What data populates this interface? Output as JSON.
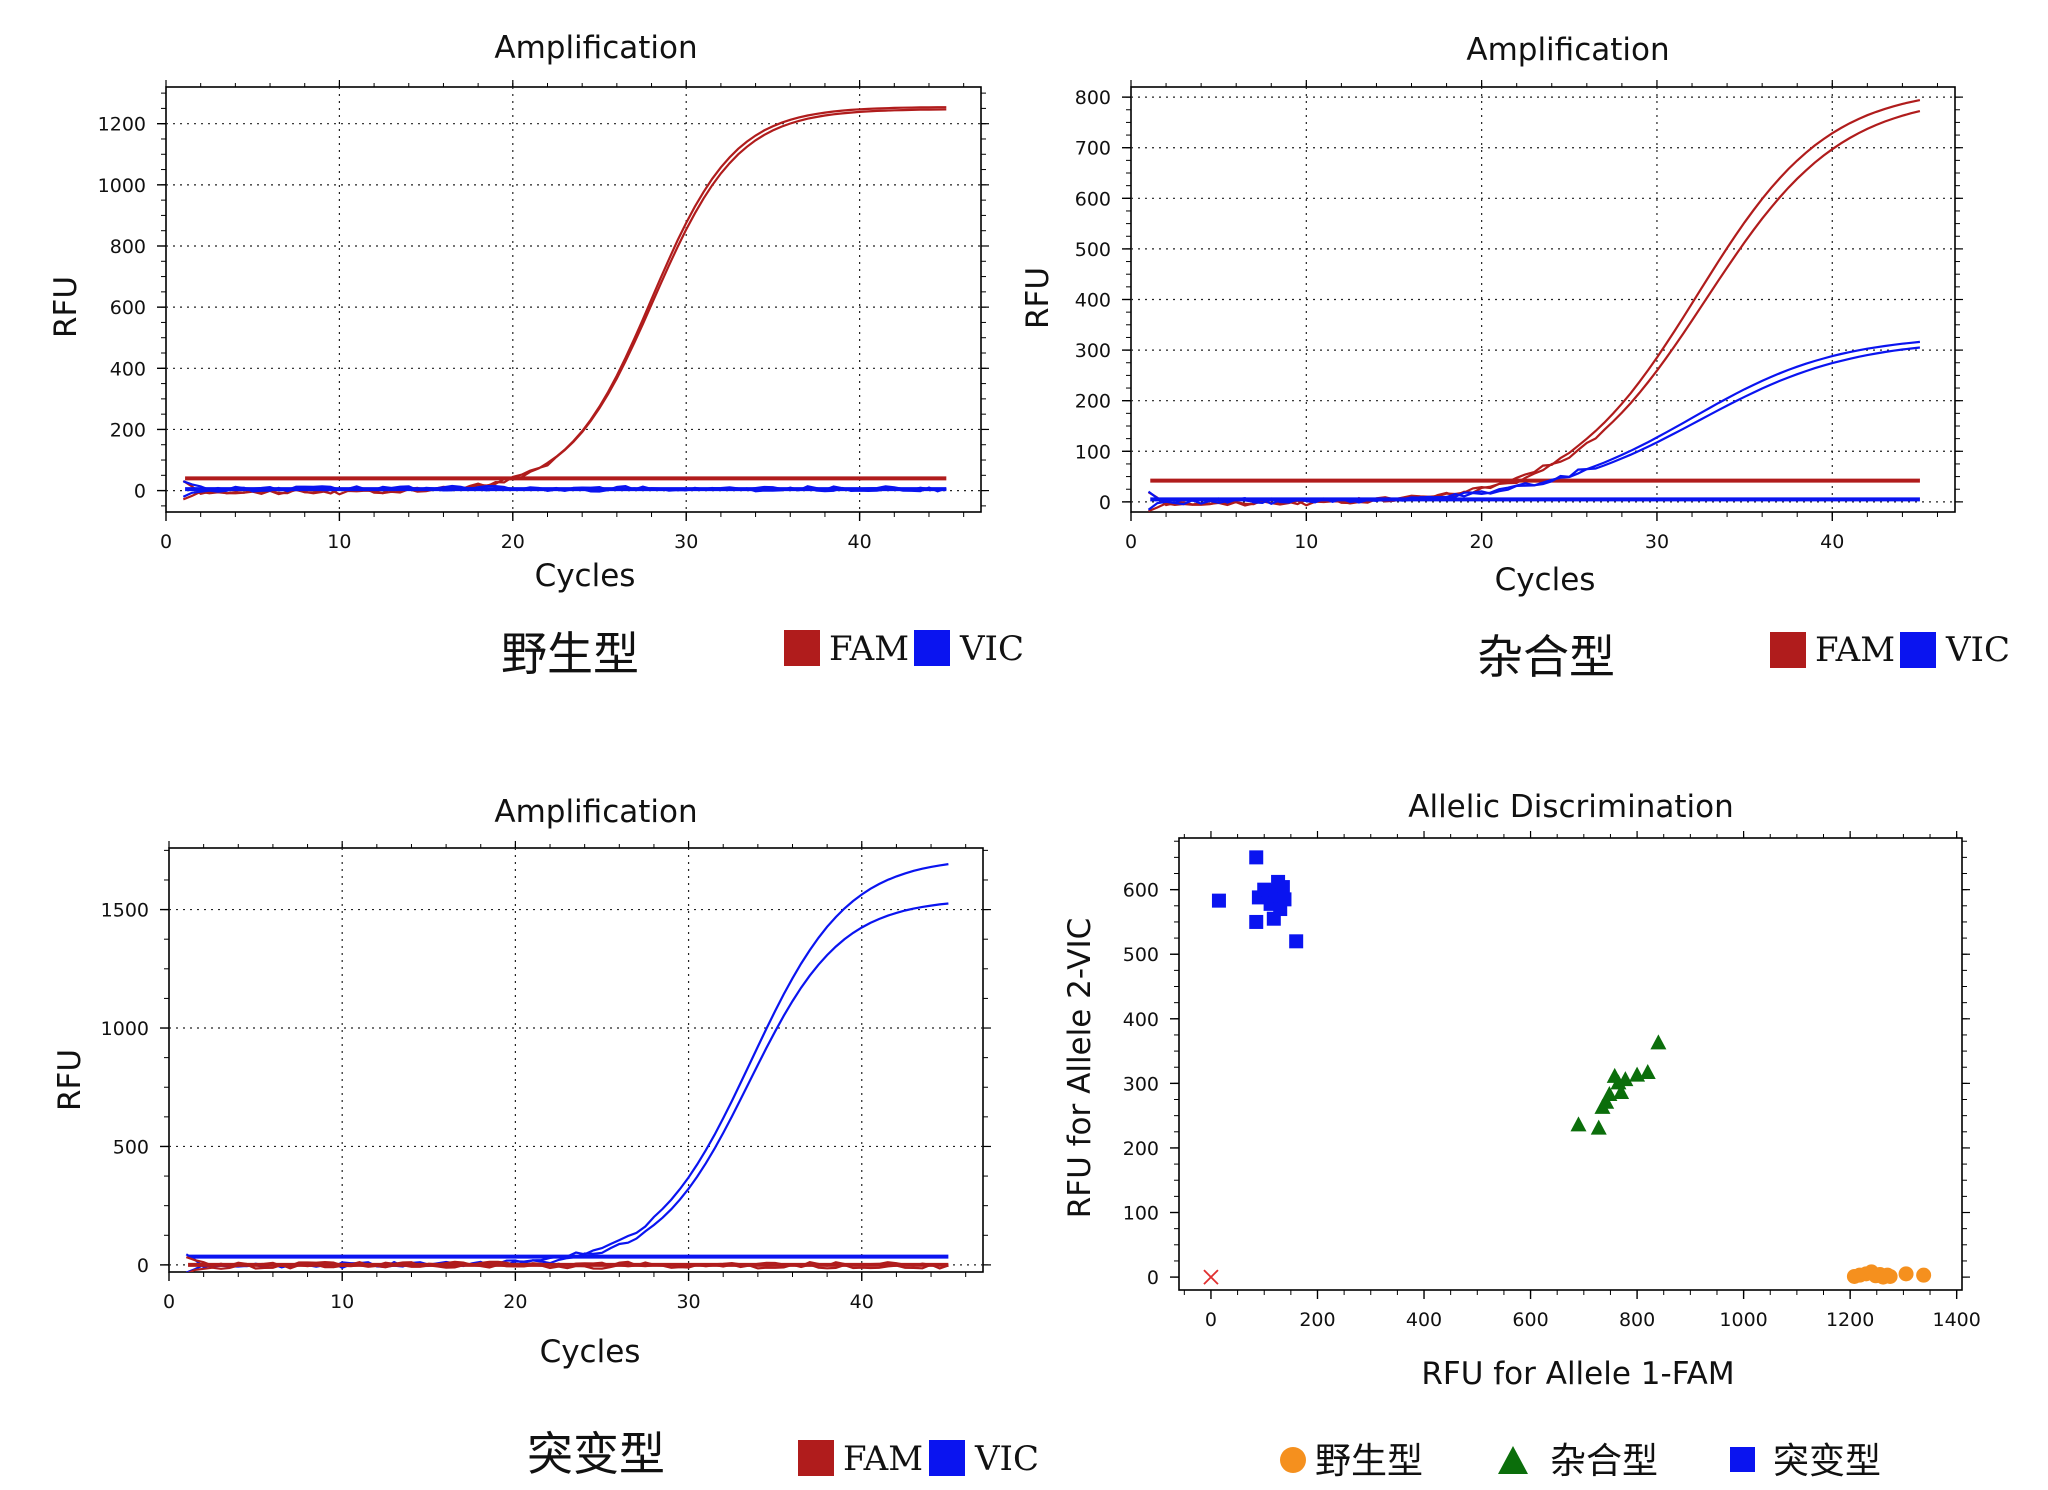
{
  "colors": {
    "fam": "#b01c1c",
    "vic": "#0a14f0",
    "wild_marker": "#f5901e",
    "het_marker": "#0b6e0b",
    "mut_marker": "#0a14f0",
    "ntc_marker": "#e03030"
  },
  "chart_data": [
    {
      "id": "wild",
      "type": "line",
      "title": "Amplification",
      "xlabel": "Cycles",
      "ylabel": "RFU",
      "xlim": [
        0,
        47
      ],
      "ylim": [
        -70,
        1320
      ],
      "xticks": [
        0,
        10,
        20,
        30,
        40
      ],
      "yticks": [
        0,
        200,
        400,
        600,
        800,
        1000,
        1200
      ],
      "grid": true,
      "caption": "野生型",
      "legend": [
        {
          "name": "FAM",
          "color": "#b01c1c"
        },
        {
          "name": "VIC",
          "color": "#0a14f0"
        }
      ],
      "series": [
        {
          "color": "#b01c1c",
          "kind": "sigmoid",
          "base": -3,
          "plateau": 1255,
          "ct": 28.0,
          "k": 0.42
        },
        {
          "color": "#b01c1c",
          "kind": "sigmoid",
          "base": -5,
          "plateau": 1248,
          "ct": 28.1,
          "k": 0.41
        },
        {
          "color": "#b01c1c",
          "kind": "threshold",
          "value": 40
        },
        {
          "color": "#0a14f0",
          "kind": "flat",
          "value": 3
        },
        {
          "color": "#0a14f0",
          "kind": "flat",
          "value": 8
        },
        {
          "color": "#0a14f0",
          "kind": "threshold",
          "value": 5
        }
      ]
    },
    {
      "id": "het",
      "type": "line",
      "title": "Amplification",
      "xlabel": "Cycles",
      "ylabel": "RFU",
      "xlim": [
        0,
        47
      ],
      "ylim": [
        -20,
        820
      ],
      "xticks": [
        0,
        10,
        20,
        30,
        40
      ],
      "yticks": [
        0,
        100,
        200,
        300,
        400,
        500,
        600,
        700,
        800
      ],
      "grid": true,
      "caption": "杂合型",
      "legend": [
        {
          "name": "FAM",
          "color": "#b01c1c"
        },
        {
          "name": "VIC",
          "color": "#0a14f0"
        }
      ],
      "series": [
        {
          "color": "#b01c1c",
          "kind": "sigmoid",
          "base": -2,
          "plateau": 820,
          "ct": 32.3,
          "k": 0.27
        },
        {
          "color": "#b01c1c",
          "kind": "sigmoid",
          "base": -4,
          "plateau": 805,
          "ct": 32.8,
          "k": 0.26
        },
        {
          "color": "#b01c1c",
          "kind": "threshold",
          "value": 42
        },
        {
          "color": "#0a14f0",
          "kind": "sigmoid",
          "base": 2,
          "plateau": 330,
          "ct": 32.0,
          "k": 0.24
        },
        {
          "color": "#0a14f0",
          "kind": "sigmoid",
          "base": 0,
          "plateau": 322,
          "ct": 32.4,
          "k": 0.23
        },
        {
          "color": "#0a14f0",
          "kind": "threshold",
          "value": 5
        }
      ]
    },
    {
      "id": "mut",
      "type": "line",
      "title": "Amplification",
      "xlabel": "Cycles",
      "ylabel": "RFU",
      "xlim": [
        0,
        47
      ],
      "ylim": [
        -30,
        1760
      ],
      "xticks": [
        0,
        10,
        20,
        30,
        40
      ],
      "yticks": [
        0,
        500,
        1000,
        1500
      ],
      "grid": true,
      "caption": "突变型",
      "legend": [
        {
          "name": "FAM",
          "color": "#b01c1c"
        },
        {
          "name": "VIC",
          "color": "#0a14f0"
        }
      ],
      "series": [
        {
          "color": "#0a14f0",
          "kind": "sigmoid",
          "base": 0,
          "plateau": 1720,
          "ct": 33.6,
          "k": 0.36
        },
        {
          "color": "#0a14f0",
          "kind": "sigmoid",
          "base": -2,
          "plateau": 1545,
          "ct": 33.5,
          "k": 0.38
        },
        {
          "color": "#0a14f0",
          "kind": "threshold",
          "value": 35
        },
        {
          "color": "#b01c1c",
          "kind": "flat",
          "value": -8
        },
        {
          "color": "#b01c1c",
          "kind": "flat",
          "value": 4
        },
        {
          "color": "#b01c1c",
          "kind": "threshold",
          "value": 0
        }
      ]
    },
    {
      "id": "allelic",
      "type": "scatter",
      "title": "Allelic Discrimination",
      "xlabel": "RFU for Allele 1-FAM",
      "ylabel": "RFU for Allele 2-VIC",
      "xlim": [
        -60,
        1410
      ],
      "ylim": [
        -20,
        680
      ],
      "xticks": [
        0,
        200,
        400,
        600,
        800,
        1000,
        1200,
        1400
      ],
      "yticks": [
        0,
        100,
        200,
        300,
        400,
        500,
        600
      ],
      "grid": false,
      "legend": [
        {
          "name": "野生型",
          "color": "#f5901e",
          "marker": "circle"
        },
        {
          "name": "杂合型",
          "color": "#0b6e0b",
          "marker": "triangle"
        },
        {
          "name": "突变型",
          "color": "#0a14f0",
          "marker": "square"
        }
      ],
      "series": [
        {
          "marker": "circle",
          "color": "#f5901e",
          "points": [
            [
              1208,
              1
            ],
            [
              1218,
              3
            ],
            [
              1230,
              5
            ],
            [
              1240,
              8
            ],
            [
              1248,
              2
            ],
            [
              1256,
              4
            ],
            [
              1262,
              0
            ],
            [
              1270,
              3
            ],
            [
              1275,
              1
            ],
            [
              1305,
              5
            ],
            [
              1338,
              3
            ]
          ]
        },
        {
          "marker": "triangle",
          "color": "#0b6e0b",
          "points": [
            [
              690,
              235
            ],
            [
              728,
              230
            ],
            [
              735,
              262
            ],
            [
              742,
              270
            ],
            [
              748,
              282
            ],
            [
              758,
              310
            ],
            [
              765,
              300
            ],
            [
              770,
              285
            ],
            [
              778,
              305
            ],
            [
              800,
              312
            ],
            [
              820,
              316
            ],
            [
              840,
              362
            ]
          ]
        },
        {
          "marker": "square",
          "color": "#0a14f0",
          "points": [
            [
              15,
              583
            ],
            [
              85,
              650
            ],
            [
              85,
              550
            ],
            [
              90,
              588
            ],
            [
              100,
              600
            ],
            [
              108,
              592
            ],
            [
              112,
              578
            ],
            [
              118,
              555
            ],
            [
              122,
              598
            ],
            [
              126,
              612
            ],
            [
              130,
              570
            ],
            [
              135,
              604
            ],
            [
              138,
              585
            ],
            [
              160,
              520
            ]
          ]
        },
        {
          "marker": "x",
          "color": "#e03030",
          "points": [
            [
              0,
              0
            ]
          ]
        }
      ]
    }
  ]
}
